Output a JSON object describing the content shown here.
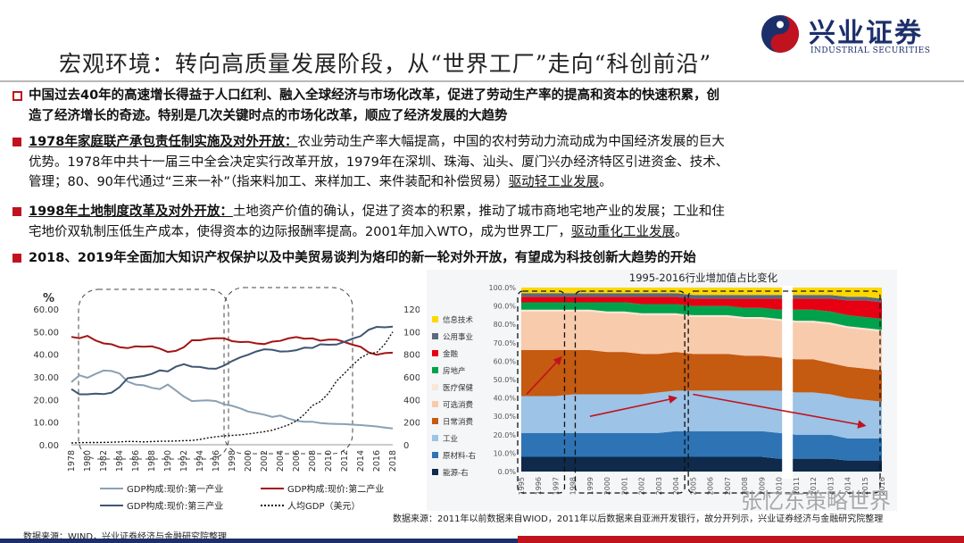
{
  "header": {
    "title": "宏观环境：转向高质量发展阶段，从“世界工厂”走向“科创前沿”",
    "logo_cn": "兴业证券",
    "logo_en": "INDUSTRIAL SECURITIES"
  },
  "bullets": [
    {
      "lines": [
        "中国过去40年的高速增长得益于人口红利、融入全球经济与市场化改革，促进了劳动生产率的提高和资本的快速积累，创",
        "造了经济增长的奇迹。特别是几次关键时点的市场化改革，顺应了经济发展的大趋势"
      ]
    },
    {
      "heading": "1978年家庭联产承包责任制实施及对外开放：",
      "lines": [
        "农业劳动生产率大幅提高，中国的农村劳动力流动成为中国经济发展的巨大",
        "优势。1978年中共十一届三中全会决定实行改革开放，1979年在深圳、珠海、汕头、厦门兴办经济特区引进资金、技术、",
        "管理；80、90年代通过“三来一补”（指来料加工、来样加工、来件装配和补偿贸易）"
      ],
      "tail": "驱动轻工业发展",
      "end": "。"
    },
    {
      "heading": "1998年土地制度改革及对外开放：",
      "lines": [
        "土地资产价值的确认，促进了资本的积累，推动了城市商地宅地产业的发展；工业和住",
        "宅地价双轨制压低生产成本，使得资本的边际报酬率提高。2001年加入WTO，成为世界工厂，"
      ],
      "tail": "驱动重化工业发展",
      "end": "。"
    },
    {
      "lines": [
        "2018、2019年全面加大知识产权保护以及中美贸易谈判为烙印的新一轮对外开放，有望成为科技创新大趋势的开始"
      ]
    }
  ],
  "chart_data": [
    {
      "type": "line",
      "ylabel": "%",
      "ylim": [
        0,
        60
      ],
      "y2lim": [
        0,
        12000
      ],
      "yticks": [
        "0.00",
        "10.00",
        "20.00",
        "30.00",
        "40.00",
        "50.00",
        "60.00"
      ],
      "y2ticks": [
        "0",
        "2000",
        "4000",
        "6000",
        "8000",
        "10000",
        "12000"
      ],
      "x": [
        1978,
        1979,
        1980,
        1981,
        1982,
        1983,
        1984,
        1985,
        1986,
        1987,
        1988,
        1989,
        1990,
        1991,
        1992,
        1993,
        1994,
        1995,
        1996,
        1997,
        1998,
        1999,
        2000,
        2001,
        2002,
        2003,
        2004,
        2005,
        2006,
        2007,
        2008,
        2009,
        2010,
        2011,
        2012,
        2013,
        2014,
        2015,
        2016,
        2017,
        2018
      ],
      "xticks": [
        "1978",
        "1980",
        "1982",
        "1984",
        "1986",
        "1988",
        "1990",
        "1992",
        "1994",
        "1996",
        "1998",
        "2000",
        "2002",
        "2004",
        "2006",
        "2008",
        "2010",
        "2012",
        "2014",
        "2016",
        "2018"
      ],
      "series": [
        {
          "name": "GDP构成:现价:第一产业",
          "color": "#8aa0b4",
          "axis": "left",
          "values": [
            27.7,
            30.7,
            29.6,
            31.3,
            32.8,
            32.6,
            31.5,
            27.9,
            26.6,
            26.3,
            25.2,
            24.6,
            26.6,
            24.0,
            21.3,
            19.3,
            19.5,
            19.6,
            19.3,
            17.9,
            17.2,
            16.1,
            14.7,
            14.0,
            13.3,
            12.3,
            12.9,
            11.6,
            10.6,
            10.2,
            10.2,
            9.6,
            9.3,
            9.2,
            9.1,
            8.9,
            8.7,
            8.4,
            8.1,
            7.6,
            7.2
          ]
        },
        {
          "name": "GDP构成:现价:第二产业",
          "color": "#a31414",
          "axis": "left",
          "values": [
            47.7,
            47.1,
            48.1,
            46.1,
            44.8,
            44.4,
            43.1,
            42.7,
            43.5,
            43.3,
            43.5,
            42.5,
            41.0,
            41.5,
            43.1,
            46.2,
            46.2,
            46.8,
            47.1,
            47.1,
            45.8,
            45.4,
            45.5,
            44.8,
            44.5,
            45.6,
            45.9,
            47.0,
            47.6,
            46.9,
            47.0,
            46.0,
            46.5,
            46.5,
            45.4,
            44.2,
            43.3,
            40.8,
            39.8,
            40.5,
            40.7
          ]
        },
        {
          "name": "GDP构成:现价:第三产业",
          "color": "#3f5672",
          "axis": "left",
          "values": [
            24.6,
            22.3,
            22.3,
            22.6,
            22.4,
            23.0,
            25.5,
            29.4,
            29.9,
            30.4,
            31.3,
            32.9,
            32.4,
            34.5,
            35.6,
            34.5,
            34.4,
            33.7,
            33.6,
            35.0,
            37.0,
            38.6,
            39.8,
            41.2,
            42.2,
            42.0,
            41.2,
            41.3,
            41.8,
            42.9,
            42.8,
            44.4,
            44.2,
            44.3,
            45.5,
            46.9,
            48.0,
            50.8,
            52.1,
            51.9,
            52.2
          ]
        },
        {
          "name": "人均GDP（美元）",
          "color": "#111111",
          "axis": "right",
          "dashed": true,
          "values": [
            156,
            183,
            195,
            197,
            203,
            225,
            251,
            294,
            282,
            252,
            284,
            311,
            318,
            333,
            366,
            377,
            473,
            609,
            709,
            781,
            828,
            873,
            959,
            1053,
            1149,
            1289,
            1509,
            1753,
            2099,
            2694,
            3468,
            3832,
            4550,
            5618,
            6317,
            7051,
            7679,
            8067,
            8148,
            8879,
            9977
          ]
        }
      ]
    },
    {
      "type": "area",
      "title": "1995-2016行业增加值占比变化",
      "ylim": [
        0,
        100
      ],
      "yticks": [
        "0.0%",
        "10.0%",
        "20.0%",
        "30.0%",
        "40.0%",
        "50.0%",
        "60.0%",
        "70.0%",
        "80.0%",
        "90.0%",
        "100.0%"
      ],
      "x": [
        1995,
        1996,
        1997,
        1998,
        1999,
        2000,
        2001,
        2002,
        2003,
        2004,
        2005,
        2006,
        2007,
        2008,
        2009,
        2010,
        2011,
        2012,
        2013,
        2014,
        2015,
        2016
      ],
      "xticks": [
        "1995",
        "1996",
        "1997",
        "1998",
        "1999",
        "2000",
        "2001",
        "2002",
        "2003",
        "2004",
        "2005",
        "2006",
        "2007",
        "2008",
        "2009",
        "2010",
        "2011",
        "2012",
        "2013",
        "2014",
        "2015",
        "2016"
      ],
      "series": [
        {
          "name": "能源-右",
          "color": "#0f2a4a",
          "values": [
            8,
            8,
            8,
            8,
            8,
            8,
            8,
            8,
            8,
            8,
            8,
            8,
            8,
            8,
            8,
            7,
            7,
            7,
            7,
            6,
            6,
            6
          ]
        },
        {
          "name": "原材料-右",
          "color": "#2e74b5",
          "values": [
            13,
            13,
            13,
            13,
            13,
            13,
            13,
            13,
            13,
            14,
            14,
            14,
            14,
            14,
            14,
            14,
            13,
            13,
            13,
            12,
            12,
            12
          ]
        },
        {
          "name": "工业",
          "color": "#9dc3e6",
          "values": [
            20,
            20,
            20,
            21,
            21,
            21,
            21,
            21,
            22,
            22,
            22,
            22,
            22,
            22,
            22,
            23,
            23,
            23,
            22,
            22,
            21,
            20
          ]
        },
        {
          "name": "日常消费",
          "color": "#c55a11",
          "values": [
            25,
            25,
            25,
            24,
            24,
            23,
            23,
            22,
            21,
            21,
            20,
            20,
            20,
            19,
            19,
            18,
            18,
            18,
            17,
            17,
            17,
            17
          ]
        },
        {
          "name": "可选消费",
          "color": "#f8cbad",
          "values": [
            21,
            21,
            21,
            21,
            21,
            21,
            21,
            21,
            21,
            20,
            20,
            20,
            20,
            20,
            20,
            20,
            20,
            20,
            21,
            21,
            21,
            21
          ]
        },
        {
          "name": "医疗保健",
          "color": "#fbe5d6",
          "values": [
            1,
            1,
            1,
            1,
            1,
            1,
            1,
            1,
            1,
            1,
            1,
            1,
            1,
            1,
            1,
            1,
            1,
            1,
            1,
            1,
            1,
            1
          ]
        },
        {
          "name": "房地产",
          "color": "#00a14b",
          "values": [
            4,
            4,
            4,
            4,
            4,
            5,
            5,
            5,
            5,
            5,
            5,
            5,
            5,
            5,
            5,
            5,
            6,
            6,
            6,
            6,
            6,
            6
          ]
        },
        {
          "name": "金融",
          "color": "#e60012",
          "values": [
            3,
            3,
            3,
            3,
            3,
            3,
            3,
            4,
            4,
            4,
            4,
            4,
            4,
            5,
            5,
            6,
            6,
            6,
            7,
            8,
            9,
            9
          ]
        },
        {
          "name": "公用事业",
          "color": "#5a6a7a",
          "values": [
            2,
            2,
            2,
            2,
            2,
            2,
            2,
            2,
            2,
            2,
            2,
            2,
            2,
            2,
            2,
            2,
            2,
            2,
            2,
            2,
            2,
            2
          ]
        },
        {
          "name": "信息技术",
          "color": "#ffd700",
          "values": [
            3,
            3,
            3,
            3,
            3,
            3,
            3,
            3,
            3,
            3,
            4,
            4,
            4,
            4,
            4,
            4,
            4,
            4,
            4,
            5,
            5,
            6
          ]
        }
      ]
    }
  ],
  "footer": {
    "source_left": "数据来源：WIND，兴业证券经济与金融研究院整理",
    "source_right": "数据来源：2011年以前数据来自WIOD，2011年以后数据来自亚洲开发银行，故分开列示，兴业证券经济与金融研究院整理",
    "watermark": "张忆东策略世界"
  }
}
